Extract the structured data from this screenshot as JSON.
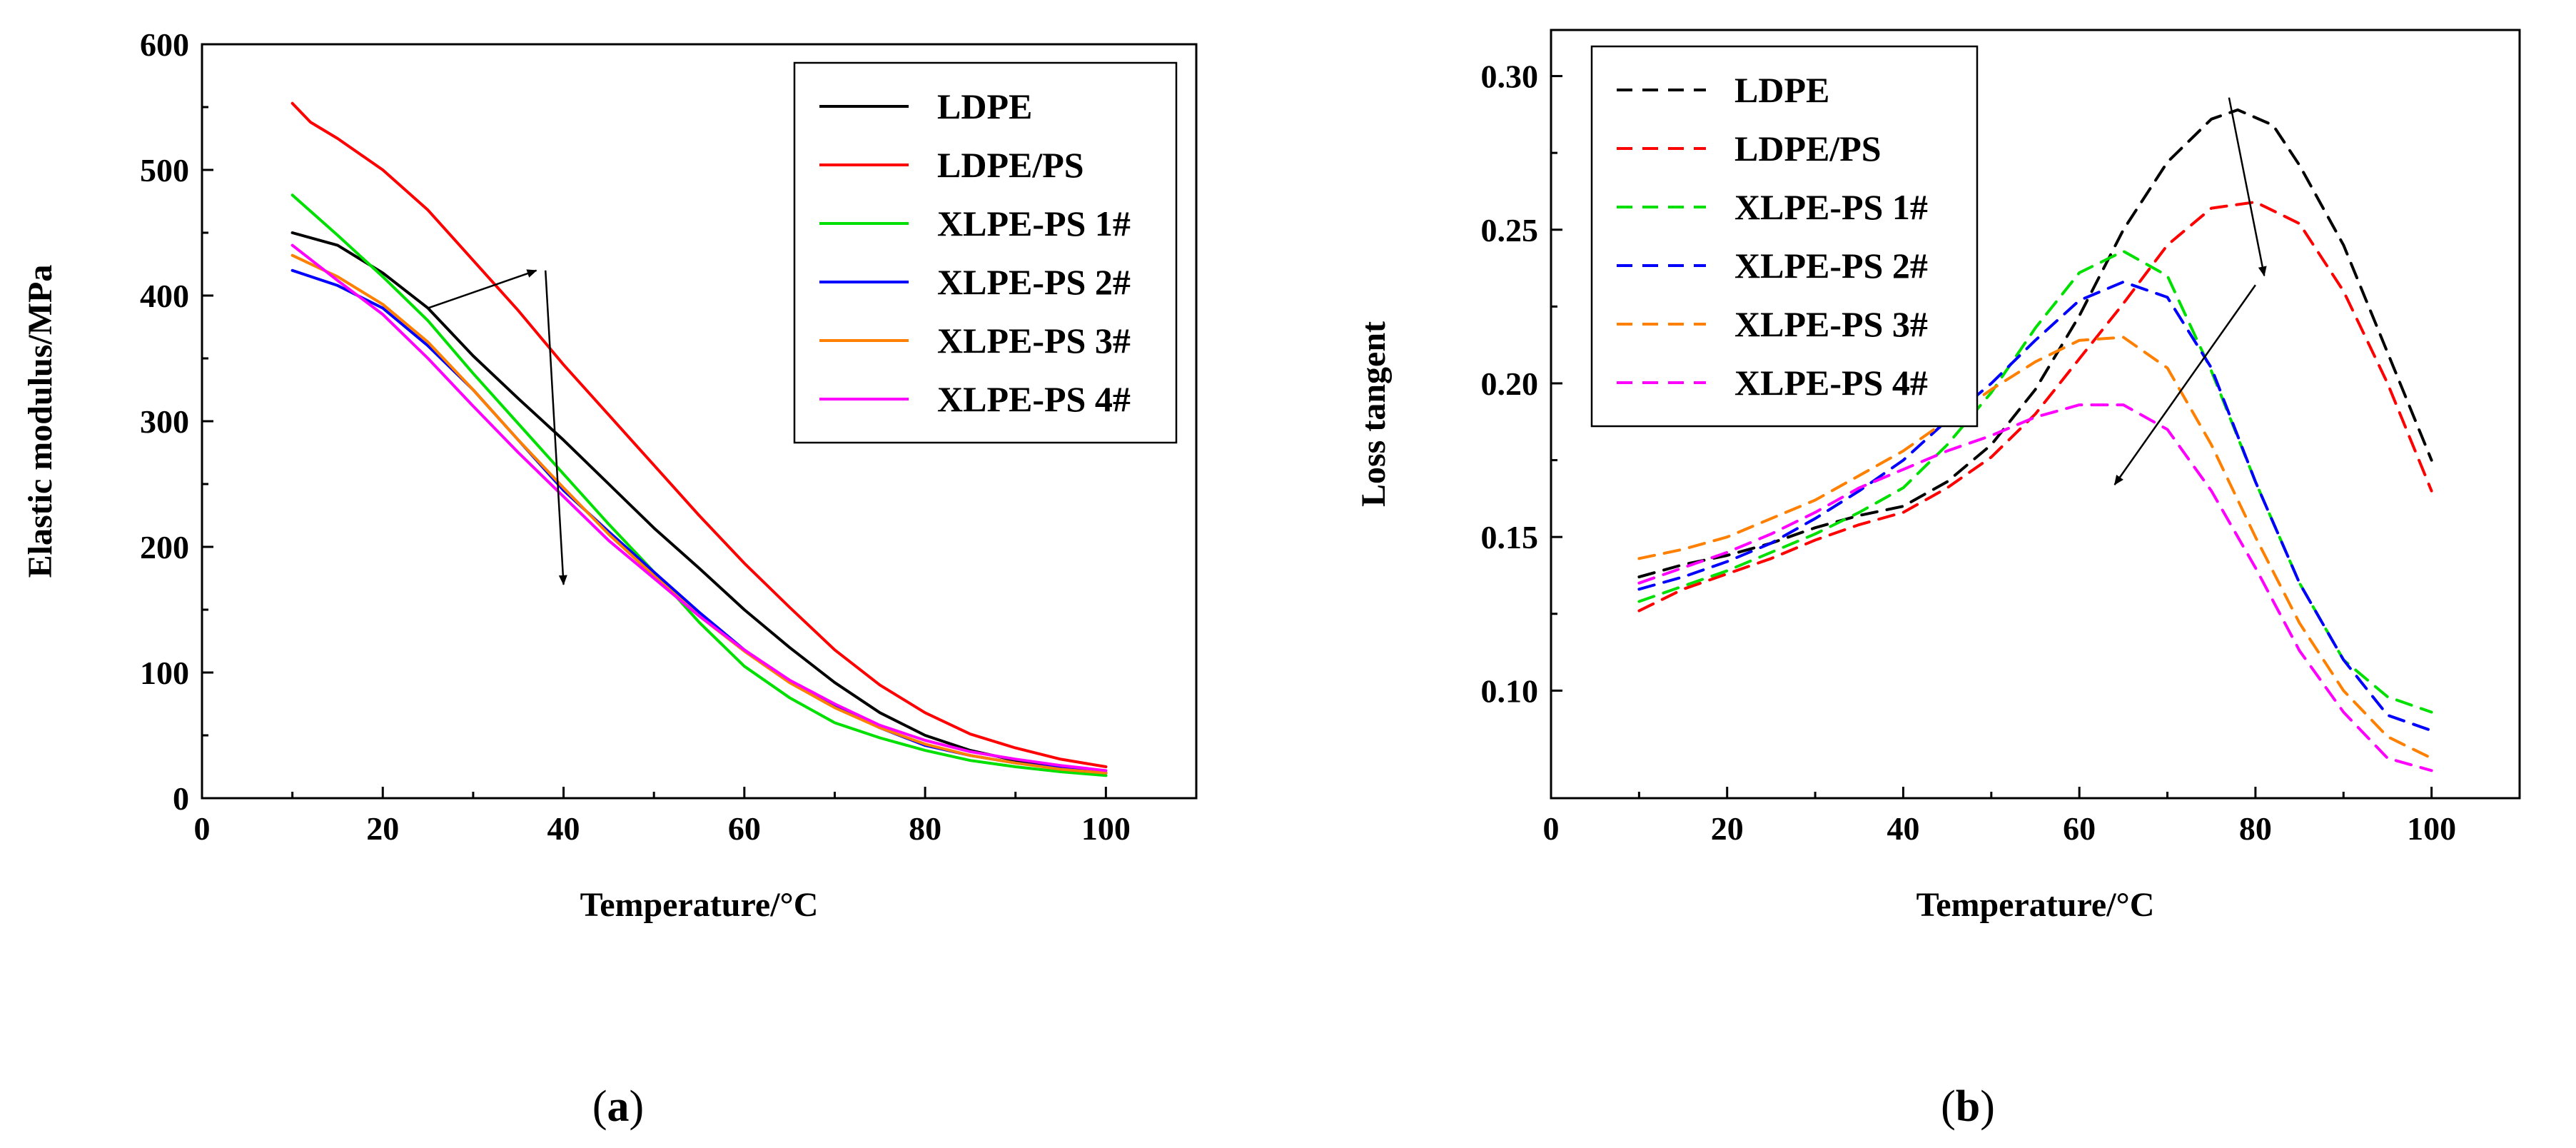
{
  "chart_data": [
    {
      "type": "line",
      "panel_label": "(a)",
      "panel_label_parts": {
        "open": "(",
        "letter": "a",
        "close": ")"
      },
      "title": "",
      "xlabel": "Temperature/°C",
      "ylabel": "Elastic modulus/MPa",
      "xlim": [
        0,
        110
      ],
      "ylim": [
        0,
        600
      ],
      "xticks": [
        0,
        20,
        40,
        60,
        80,
        100
      ],
      "yticks": [
        0,
        100,
        200,
        300,
        400,
        500,
        600
      ],
      "xtick_labels": [
        "0",
        "20",
        "40",
        "60",
        "80",
        "100"
      ],
      "ytick_labels": [
        "0",
        "100",
        "200",
        "300",
        "400",
        "500",
        "600"
      ],
      "line_style": "solid",
      "legend_position": "top-right",
      "series": [
        {
          "name": "LDPE",
          "color": "#000000",
          "x": [
            10,
            15,
            20,
            25,
            30,
            35,
            40,
            45,
            50,
            55,
            60,
            65,
            70,
            75,
            80,
            85,
            90,
            95,
            100
          ],
          "y": [
            450,
            440,
            418,
            390,
            352,
            318,
            285,
            250,
            215,
            183,
            150,
            120,
            92,
            68,
            50,
            38,
            30,
            24,
            20
          ]
        },
        {
          "name": "LDPE/PS",
          "color": "#ff0000",
          "x": [
            10,
            12,
            15,
            20,
            25,
            30,
            35,
            40,
            45,
            50,
            55,
            60,
            65,
            70,
            75,
            80,
            85,
            90,
            95,
            100
          ],
          "y": [
            553,
            538,
            525,
            500,
            468,
            428,
            388,
            345,
            305,
            265,
            225,
            187,
            152,
            118,
            90,
            68,
            51,
            40,
            31,
            25
          ]
        },
        {
          "name": "XLPE-PS 1#",
          "color": "#00e000",
          "x": [
            10,
            15,
            20,
            25,
            30,
            35,
            40,
            45,
            50,
            55,
            60,
            65,
            70,
            75,
            80,
            85,
            90,
            95,
            100
          ],
          "y": [
            480,
            448,
            415,
            380,
            338,
            298,
            258,
            218,
            180,
            140,
            105,
            80,
            60,
            48,
            38,
            30,
            25,
            21,
            18
          ]
        },
        {
          "name": "XLPE-PS 2#",
          "color": "#0000ff",
          "x": [
            10,
            15,
            20,
            25,
            30,
            35,
            40,
            45,
            50,
            55,
            60,
            65,
            70,
            75,
            80,
            85,
            90,
            95,
            100
          ],
          "y": [
            420,
            408,
            390,
            360,
            325,
            285,
            245,
            212,
            180,
            148,
            118,
            93,
            73,
            56,
            42,
            34,
            28,
            24,
            20
          ]
        },
        {
          "name": "XLPE-PS 3#",
          "color": "#ff8000",
          "x": [
            10,
            15,
            20,
            25,
            30,
            35,
            40,
            45,
            50,
            55,
            60,
            65,
            70,
            75,
            80,
            85,
            90,
            95,
            100
          ],
          "y": [
            432,
            415,
            393,
            363,
            325,
            285,
            247,
            210,
            177,
            145,
            117,
            92,
            72,
            56,
            43,
            34,
            28,
            23,
            20
          ]
        },
        {
          "name": "XLPE-PS 4#",
          "color": "#ff00ff",
          "x": [
            10,
            15,
            20,
            25,
            30,
            35,
            40,
            45,
            50,
            55,
            60,
            65,
            70,
            75,
            80,
            85,
            90,
            95,
            100
          ],
          "y": [
            440,
            412,
            385,
            350,
            312,
            275,
            240,
            205,
            175,
            145,
            118,
            94,
            75,
            58,
            46,
            37,
            31,
            26,
            22
          ]
        }
      ],
      "arrows": [
        {
          "from": [
            25,
            390
          ],
          "to": [
            37,
            420
          ]
        },
        {
          "from": [
            38,
            420
          ],
          "to": [
            40,
            170
          ]
        }
      ]
    },
    {
      "type": "line",
      "panel_label": "(b)",
      "panel_label_parts": {
        "open": "(",
        "letter": "b",
        "close": ")"
      },
      "title": "",
      "xlabel": "Temperature/°C",
      "ylabel": "Loss tangent",
      "xlim": [
        0,
        110
      ],
      "ylim": [
        0.065,
        0.315
      ],
      "xticks": [
        0,
        20,
        40,
        60,
        80,
        100
      ],
      "yticks": [
        0.1,
        0.15,
        0.2,
        0.25,
        0.3
      ],
      "xtick_labels": [
        "0",
        "20",
        "40",
        "60",
        "80",
        "100"
      ],
      "ytick_labels": [
        "0.10",
        "0.15",
        "0.20",
        "0.25",
        "0.30"
      ],
      "line_style": "dashed",
      "legend_position": "top-left",
      "series": [
        {
          "name": "LDPE",
          "color": "#000000",
          "x": [
            10,
            15,
            20,
            25,
            30,
            35,
            40,
            45,
            50,
            55,
            60,
            65,
            70,
            75,
            78,
            82,
            85,
            90,
            95,
            100
          ],
          "y": [
            0.137,
            0.141,
            0.144,
            0.148,
            0.153,
            0.157,
            0.16,
            0.168,
            0.18,
            0.198,
            0.222,
            0.25,
            0.272,
            0.286,
            0.289,
            0.284,
            0.271,
            0.245,
            0.21,
            0.175
          ]
        },
        {
          "name": "LDPE/PS",
          "color": "#ff0000",
          "x": [
            10,
            15,
            20,
            25,
            30,
            35,
            40,
            45,
            50,
            55,
            60,
            65,
            70,
            75,
            80,
            85,
            90,
            95,
            100
          ],
          "y": [
            0.126,
            0.133,
            0.138,
            0.143,
            0.149,
            0.154,
            0.158,
            0.166,
            0.176,
            0.19,
            0.208,
            0.226,
            0.245,
            0.257,
            0.259,
            0.252,
            0.23,
            0.2,
            0.165
          ]
        },
        {
          "name": "XLPE-PS 1#",
          "color": "#00e000",
          "x": [
            10,
            15,
            20,
            25,
            30,
            35,
            40,
            45,
            50,
            55,
            60,
            65,
            70,
            75,
            80,
            85,
            90,
            95,
            100
          ],
          "y": [
            0.129,
            0.134,
            0.139,
            0.145,
            0.151,
            0.158,
            0.166,
            0.18,
            0.197,
            0.218,
            0.236,
            0.243,
            0.235,
            0.204,
            0.168,
            0.135,
            0.11,
            0.098,
            0.093
          ]
        },
        {
          "name": "XLPE-PS 2#",
          "color": "#0000ff",
          "x": [
            10,
            15,
            20,
            25,
            30,
            35,
            40,
            45,
            50,
            55,
            60,
            65,
            70,
            75,
            80,
            85,
            90,
            95,
            100
          ],
          "y": [
            0.133,
            0.137,
            0.142,
            0.148,
            0.156,
            0.165,
            0.175,
            0.188,
            0.2,
            0.214,
            0.227,
            0.233,
            0.228,
            0.205,
            0.168,
            0.135,
            0.11,
            0.092,
            0.087
          ]
        },
        {
          "name": "XLPE-PS 3#",
          "color": "#ff8000",
          "x": [
            10,
            15,
            20,
            25,
            30,
            35,
            40,
            45,
            50,
            55,
            60,
            65,
            70,
            75,
            80,
            85,
            90,
            95,
            100
          ],
          "y": [
            0.143,
            0.146,
            0.15,
            0.156,
            0.162,
            0.17,
            0.178,
            0.188,
            0.198,
            0.207,
            0.214,
            0.215,
            0.205,
            0.18,
            0.15,
            0.122,
            0.1,
            0.085,
            0.078
          ]
        },
        {
          "name": "XLPE-PS 4#",
          "color": "#ff00ff",
          "x": [
            10,
            15,
            20,
            25,
            30,
            35,
            40,
            45,
            50,
            55,
            60,
            65,
            70,
            75,
            80,
            85,
            90,
            95,
            100
          ],
          "y": [
            0.135,
            0.14,
            0.145,
            0.151,
            0.158,
            0.166,
            0.172,
            0.178,
            0.183,
            0.189,
            0.193,
            0.193,
            0.185,
            0.165,
            0.14,
            0.113,
            0.093,
            0.078,
            0.074
          ]
        }
      ],
      "arrows": [
        {
          "from": [
            77,
            0.293
          ],
          "to": [
            81,
            0.235
          ]
        },
        {
          "from": [
            80,
            0.232
          ],
          "to": [
            64,
            0.167
          ]
        }
      ]
    }
  ]
}
